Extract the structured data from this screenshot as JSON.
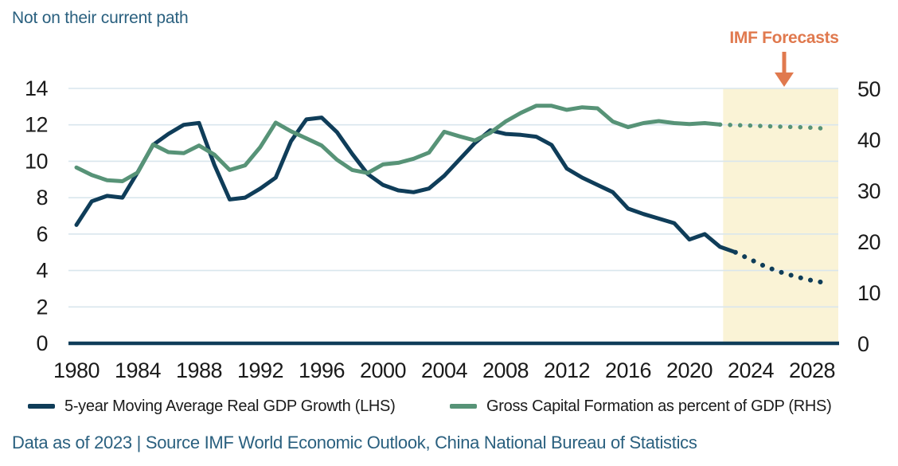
{
  "title": "Not on their current path",
  "annotation": {
    "label": "IMF Forecasts",
    "color": "#e0794e"
  },
  "footer": "Data as of 2023 | Source IMF World Economic Outlook, China National Bureau of Statistics",
  "legend": [
    {
      "label": "5-year Moving Average Real GDP Growth (LHS)",
      "color": "#0f3d59"
    },
    {
      "label": "Gross Capital Formation as percent of GDP (RHS)",
      "color": "#579377"
    }
  ],
  "colors": {
    "heading": "#2a607f",
    "tick_text": "#1b1b1b",
    "grid": "#d9e6ed",
    "axis_line": "#0f3d59",
    "forecast_fill": "#faf3d6",
    "annotation": "#e0794e"
  },
  "chart_data": {
    "type": "line",
    "title": "Not on their current path",
    "grid": true,
    "x": [
      1980,
      1981,
      1982,
      1983,
      1984,
      1985,
      1986,
      1987,
      1988,
      1989,
      1990,
      1991,
      1992,
      1993,
      1994,
      1995,
      1996,
      1997,
      1998,
      1999,
      2000,
      2001,
      2002,
      2003,
      2004,
      2005,
      2006,
      2007,
      2008,
      2009,
      2010,
      2011,
      2012,
      2013,
      2014,
      2015,
      2016,
      2017,
      2018,
      2019,
      2020,
      2021,
      2022,
      2023,
      2024,
      2025,
      2026,
      2027,
      2028,
      2029
    ],
    "x_ticks": [
      1980,
      1984,
      1988,
      1992,
      1996,
      2000,
      2004,
      2008,
      2012,
      2016,
      2020,
      2024,
      2028
    ],
    "left_axis": {
      "range": [
        0,
        14
      ],
      "ticks": [
        0,
        2,
        4,
        6,
        8,
        10,
        12,
        14
      ]
    },
    "right_axis": {
      "range": [
        0,
        50
      ],
      "ticks": [
        0,
        10,
        20,
        30,
        40,
        50
      ]
    },
    "forecast_region": {
      "label": "IMF Forecasts",
      "start_year": 2022.2,
      "end_year": 2029.7,
      "fill": "#faf3d6"
    },
    "series": [
      {
        "name": "5-year Moving Average Real GDP Growth (LHS)",
        "axis": "left",
        "color": "#0f3d59",
        "solid_until": 2023,
        "values": [
          6.5,
          7.8,
          8.1,
          8.0,
          9.4,
          10.9,
          11.5,
          12.0,
          12.1,
          9.8,
          7.9,
          8.0,
          8.5,
          9.1,
          11.1,
          12.3,
          12.4,
          11.6,
          10.4,
          9.3,
          8.7,
          8.4,
          8.3,
          8.5,
          9.2,
          10.1,
          11.0,
          11.7,
          11.5,
          11.45,
          11.35,
          10.9,
          9.6,
          9.1,
          8.7,
          8.3,
          7.4,
          7.1,
          6.85,
          6.6,
          5.7,
          6.0,
          5.3,
          5.0,
          4.6,
          4.2,
          3.9,
          3.65,
          3.45,
          3.3
        ]
      },
      {
        "name": "Gross Capital Formation as percent of GDP (RHS)",
        "axis": "right",
        "color": "#579377",
        "solid_until": 2022,
        "values": [
          34.5,
          33.0,
          32.0,
          31.8,
          33.5,
          39.0,
          37.5,
          37.3,
          38.8,
          37.0,
          34.0,
          34.9,
          38.5,
          43.3,
          41.6,
          40.2,
          38.8,
          36.0,
          34.0,
          33.4,
          35.1,
          35.4,
          36.2,
          37.4,
          41.5,
          40.6,
          39.8,
          41.3,
          43.5,
          45.2,
          46.6,
          46.6,
          45.8,
          46.3,
          46.1,
          43.5,
          42.4,
          43.2,
          43.6,
          43.2,
          43.0,
          43.2,
          42.9,
          42.8,
          42.7,
          42.6,
          42.5,
          42.4,
          42.3,
          42.1
        ]
      }
    ]
  }
}
